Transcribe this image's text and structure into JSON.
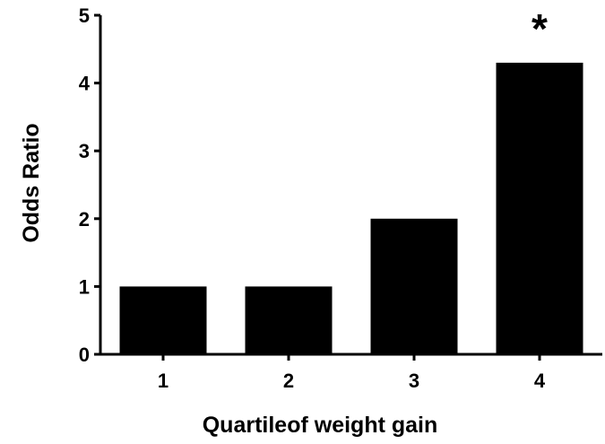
{
  "chart_data": {
    "type": "bar",
    "categories": [
      "1",
      "2",
      "3",
      "4"
    ],
    "values": [
      1,
      1,
      2,
      4.3
    ],
    "xlabel": "Quartileof weight gain",
    "ylabel": "Odds Ratio",
    "ylim": [
      0,
      5
    ],
    "yticks": [
      "0",
      "1",
      "2",
      "3",
      "4",
      "5"
    ],
    "annotations": [
      {
        "category": "4",
        "text": "*"
      }
    ],
    "grid": false,
    "bar_color": "#000000",
    "axis_color": "#000000"
  }
}
